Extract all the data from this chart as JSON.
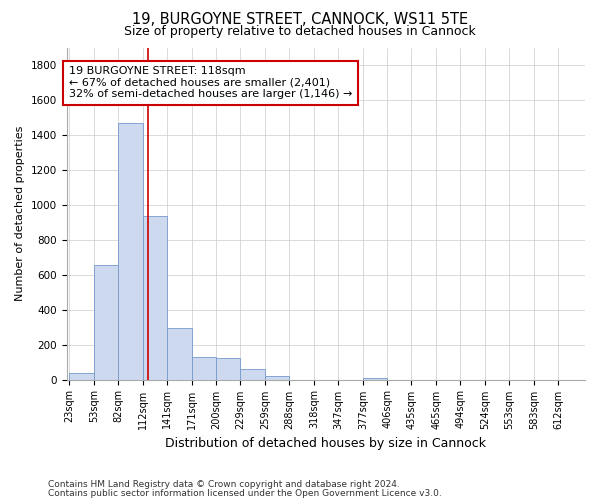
{
  "title": "19, BURGOYNE STREET, CANNOCK, WS11 5TE",
  "subtitle": "Size of property relative to detached houses in Cannock",
  "xlabel": "Distribution of detached houses by size in Cannock",
  "ylabel": "Number of detached properties",
  "bin_labels": [
    "23sqm",
    "53sqm",
    "82sqm",
    "112sqm",
    "141sqm",
    "171sqm",
    "200sqm",
    "229sqm",
    "259sqm",
    "288sqm",
    "318sqm",
    "347sqm",
    "377sqm",
    "406sqm",
    "435sqm",
    "465sqm",
    "494sqm",
    "524sqm",
    "553sqm",
    "583sqm",
    "612sqm"
  ],
  "bin_left_edges": [
    23,
    53,
    82,
    112,
    141,
    171,
    200,
    229,
    259,
    288,
    318,
    347,
    377,
    406,
    435,
    465,
    494,
    524,
    553,
    583,
    612
  ],
  "bar_heights": [
    38,
    653,
    1470,
    938,
    293,
    130,
    125,
    63,
    22,
    0,
    0,
    0,
    10,
    0,
    0,
    0,
    0,
    0,
    0,
    0,
    0
  ],
  "bar_color": "#ccd9ee",
  "bar_edgecolor": "#7799cc",
  "property_size": 118,
  "vline_color": "#cc0000",
  "annotation_line1": "19 BURGOYNE STREET: 118sqm",
  "annotation_line2": "← 67% of detached houses are smaller (2,401)",
  "annotation_line3": "32% of semi-detached houses are larger (1,146) →",
  "annotation_box_edgecolor": "#cc0000",
  "ylim": [
    0,
    1900
  ],
  "yticks": [
    0,
    200,
    400,
    600,
    800,
    1000,
    1200,
    1400,
    1600,
    1800
  ],
  "footnote1": "Contains HM Land Registry data © Crown copyright and database right 2024.",
  "footnote2": "Contains public sector information licensed under the Open Government Licence v3.0.",
  "bg_color": "#ffffff",
  "grid_color": "#cccccc",
  "title_fontsize": 10.5,
  "subtitle_fontsize": 9,
  "ylabel_fontsize": 8,
  "xlabel_fontsize": 9,
  "tick_fontsize": 7,
  "annotation_fontsize": 8,
  "footnote_fontsize": 6.5
}
